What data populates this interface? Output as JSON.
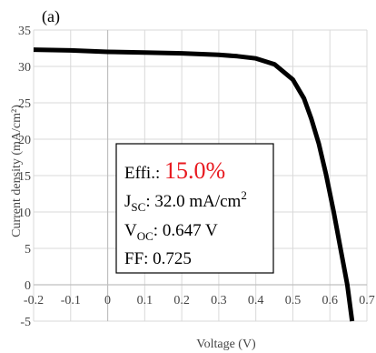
{
  "chart_data": {
    "type": "line",
    "panel_label": "(a)",
    "title": "",
    "xlabel": "Voltage (V)",
    "ylabel": "Current density (mA/cm²)",
    "xlim": [
      -0.2,
      0.7
    ],
    "ylim": [
      -5,
      35
    ],
    "x_ticks": [
      "-0.2",
      "-0.1",
      "0",
      "0.1",
      "0.2",
      "0.3",
      "0.4",
      "0.5",
      "0.6",
      "0.7"
    ],
    "y_ticks": [
      "-5",
      "0",
      "5",
      "10",
      "15",
      "20",
      "25",
      "30",
      "35"
    ],
    "grid": true,
    "series": [
      {
        "x": [
          -0.2,
          -0.1,
          0.0,
          0.1,
          0.2,
          0.3,
          0.35,
          0.4,
          0.45,
          0.5,
          0.53,
          0.55,
          0.57,
          0.59,
          0.61,
          0.63,
          0.647,
          0.66
        ],
        "y": [
          32.3,
          32.2,
          32.0,
          31.9,
          31.8,
          31.6,
          31.4,
          31.1,
          30.3,
          28.2,
          25.6,
          22.8,
          19.4,
          15.1,
          10.1,
          4.6,
          0.0,
          -5.0
        ],
        "color": "#000000"
      }
    ],
    "annotation": {
      "eff_label": "Effi.: ",
      "eff_value": "15.0%",
      "eff_color": "#e8191f",
      "jsc_main": "J",
      "jsc_sub": "SC",
      "jsc_text": ": 32.0 mA/cm",
      "jsc_sup": "2",
      "voc_main": "V",
      "voc_sub": "OC",
      "voc_text": ": 0.647 V",
      "ff_text": "FF: 0.725"
    }
  }
}
